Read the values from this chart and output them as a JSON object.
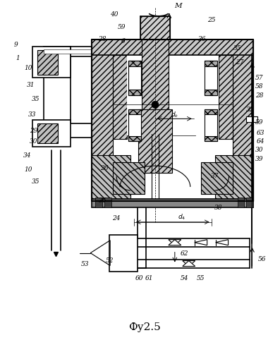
{
  "bg_color": "#ffffff",
  "figsize": [
    3.97,
    4.99
  ],
  "dpi": 100,
  "title": "Фу2.5"
}
